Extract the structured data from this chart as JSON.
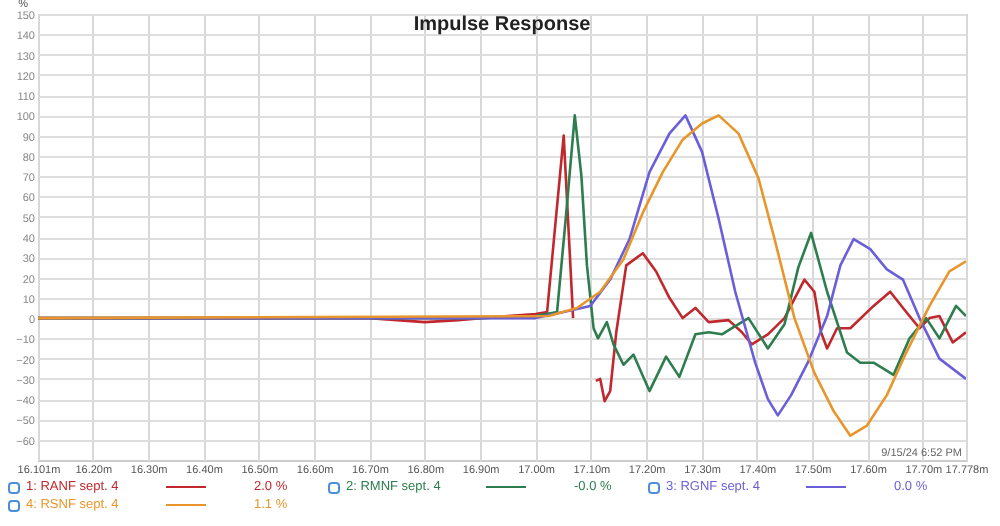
{
  "chart_data": {
    "type": "line",
    "title": "Impulse Response",
    "ylabel": "%",
    "xlim": [
      16.101,
      17.778
    ],
    "ylim": [
      -70,
      150
    ],
    "xticks": [
      {
        "value": 16.101,
        "label": "16.101m"
      },
      {
        "value": 16.2,
        "label": "16.20m"
      },
      {
        "value": 16.3,
        "label": "16.30m"
      },
      {
        "value": 16.4,
        "label": "16.40m"
      },
      {
        "value": 16.5,
        "label": "16.50m"
      },
      {
        "value": 16.6,
        "label": "16.60m"
      },
      {
        "value": 16.7,
        "label": "16.70m"
      },
      {
        "value": 16.8,
        "label": "16.80m"
      },
      {
        "value": 16.9,
        "label": "16.90m"
      },
      {
        "value": 17.0,
        "label": "17.00m"
      },
      {
        "value": 17.1,
        "label": "17.10m"
      },
      {
        "value": 17.2,
        "label": "17.20m"
      },
      {
        "value": 17.3,
        "label": "17.30m"
      },
      {
        "value": 17.4,
        "label": "17.40m"
      },
      {
        "value": 17.5,
        "label": "17.50m"
      },
      {
        "value": 17.6,
        "label": "17.60m"
      },
      {
        "value": 17.7,
        "label": "17.70m"
      },
      {
        "value": 17.778,
        "label": "17.778m"
      }
    ],
    "yticks": [
      -60,
      -50,
      -40,
      -30,
      -20,
      -10,
      0,
      10,
      20,
      30,
      40,
      50,
      60,
      70,
      80,
      90,
      100,
      110,
      120,
      130,
      140,
      150
    ],
    "grid": true,
    "legend": "bottom",
    "marker": "none",
    "line_style": "solid",
    "annotations": [
      "9/15/24 6:52 PM",
      "2.0 %",
      "-0.0 %",
      "0.0 %",
      "1.1 %"
    ],
    "series": [
      {
        "name": "1: RANF sept. 4",
        "color": "#c0282d",
        "x": [
          16.101,
          16.7,
          16.8,
          16.86,
          16.95,
          17.0,
          17.021,
          17.051,
          17.068,
          17.075,
          17.097,
          17.109,
          17.117,
          17.125,
          17.135,
          17.146,
          17.164,
          17.194,
          17.218,
          17.242,
          17.266,
          17.289,
          17.313,
          17.349,
          17.373,
          17.391,
          17.42,
          17.45,
          17.486,
          17.504,
          17.516,
          17.527,
          17.545,
          17.569,
          17.611,
          17.641,
          17.67,
          17.694,
          17.712,
          17.73,
          17.754,
          17.778
        ],
        "values": [
          0,
          0,
          -2,
          -1,
          1,
          2,
          3,
          90,
          0,
          null,
          null,
          -31,
          -30,
          -41,
          -36,
          -7,
          26,
          32,
          23,
          10,
          0,
          5,
          -2,
          -1,
          -7,
          -13,
          -8,
          0,
          19,
          13,
          -7,
          -15,
          -5,
          -5,
          6,
          13,
          3,
          -5,
          0,
          1,
          -12,
          -7
        ]
      },
      {
        "name": "2: RMNF sept. 4",
        "color": "#2e7d4f",
        "x": [
          16.101,
          16.9,
          17.0,
          17.039,
          17.055,
          17.071,
          17.083,
          17.093,
          17.105,
          17.113,
          17.129,
          17.141,
          17.159,
          17.177,
          17.206,
          17.236,
          17.26,
          17.289,
          17.313,
          17.337,
          17.355,
          17.385,
          17.42,
          17.45,
          17.475,
          17.498,
          17.527,
          17.563,
          17.587,
          17.611,
          17.647,
          17.676,
          17.706,
          17.73,
          17.76,
          17.778
        ],
        "values": [
          0,
          0,
          1,
          3,
          50,
          100,
          70,
          26,
          -5,
          -10,
          -2,
          -13,
          -23,
          -18,
          -36,
          -19,
          -29,
          -8,
          -7,
          -8,
          -5,
          0,
          -15,
          -3,
          25,
          42,
          13,
          -17,
          -22,
          -22,
          -28,
          -10,
          0,
          -10,
          6,
          1
        ]
      },
      {
        "name": "3: RGNF sept. 4",
        "color": "#6a5fd8",
        "x": [
          16.101,
          17.0,
          17.051,
          17.099,
          17.135,
          17.17,
          17.206,
          17.242,
          17.271,
          17.301,
          17.331,
          17.361,
          17.397,
          17.42,
          17.438,
          17.462,
          17.492,
          17.527,
          17.551,
          17.575,
          17.605,
          17.635,
          17.664,
          17.694,
          17.73,
          17.778
        ],
        "values": [
          0,
          0,
          3,
          6,
          19,
          39,
          72,
          91,
          100,
          82,
          49,
          13,
          -22,
          -40,
          -48,
          -38,
          -22,
          1,
          26,
          39,
          34,
          24,
          19,
          0,
          -20,
          -30
        ]
      },
      {
        "name": "4: RSNF sept. 4",
        "color": "#e8962c",
        "x": [
          16.101,
          17.024,
          17.075,
          17.117,
          17.159,
          17.194,
          17.23,
          17.266,
          17.301,
          17.331,
          17.367,
          17.403,
          17.432,
          17.468,
          17.504,
          17.539,
          17.569,
          17.599,
          17.635,
          17.67,
          17.712,
          17.748,
          17.778
        ],
        "values": [
          0,
          1,
          5,
          13,
          29,
          52,
          72,
          88,
          96,
          100,
          91,
          69,
          39,
          0,
          -27,
          -46,
          -58,
          -53,
          -38,
          -17,
          6,
          23,
          28
        ]
      }
    ]
  }
}
